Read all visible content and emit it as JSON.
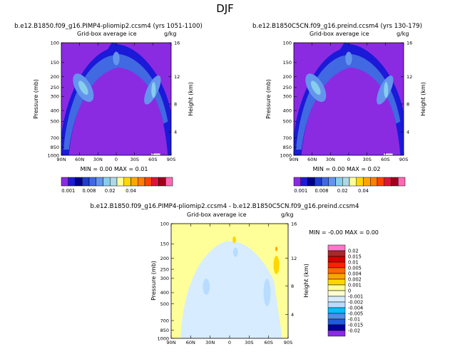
{
  "figure_title": "DJF",
  "chart_data": [
    {
      "type": "heatmap",
      "title": "b.e12.B1850.f09_g16.PIMP4-pliomip2.ccsm4 (yrs 1051-1100)",
      "subtitle": "Grid-box average ice",
      "units": "g/kg",
      "ylabel": "Pressure (mb)",
      "ylabel_right": "Height (km)",
      "xticks": [
        "90N",
        "60N",
        "30N",
        "0",
        "30S",
        "60S",
        "90S"
      ],
      "yticks": [
        "100",
        "150",
        "200",
        "250",
        "300",
        "400",
        "500",
        "700",
        "850",
        "1000"
      ],
      "height_ticks": [
        "16",
        "12",
        "8",
        "4"
      ],
      "min_label": "MIN =",
      "min_value": "0.00",
      "max_label": "MAX =",
      "max_value": "0.01"
    },
    {
      "type": "heatmap",
      "title": "b.e12.B1850C5CN.f09_g16.preind.ccsm4 (yrs 130-179)",
      "subtitle": "Grid-box average ice",
      "units": "g/kg",
      "ylabel": "Pressure (mb)",
      "ylabel_right": "Height (km)",
      "xticks": [
        "90N",
        "60N",
        "30N",
        "0",
        "30S",
        "60S",
        "90S"
      ],
      "yticks": [
        "100",
        "150",
        "200",
        "250",
        "300",
        "400",
        "500",
        "700",
        "850",
        "1000"
      ],
      "height_ticks": [
        "16",
        "12",
        "8",
        "4"
      ],
      "min_label": "MIN =",
      "min_value": "0.00",
      "max_label": "MAX =",
      "max_value": "0.02"
    },
    {
      "type": "heatmap",
      "title": "b.e12.B1850.f09_g16.PIMP4-pliomip2.ccsm4 - b.e12.B1850C5CN.f09_g16.preind.ccsm4",
      "subtitle": "Grid-box average ice",
      "units": "g/kg",
      "ylabel": "Pressure (mb)",
      "ylabel_right": "Height (km)",
      "xticks": [
        "90N",
        "60N",
        "30N",
        "0",
        "30S",
        "60S",
        "90S"
      ],
      "yticks": [
        "100",
        "150",
        "200",
        "250",
        "300",
        "400",
        "500",
        "700",
        "850",
        "1000"
      ],
      "height_ticks": [
        "16",
        "12",
        "8",
        "4"
      ],
      "min_label": "MIN =",
      "min_value": "-0.00",
      "max_label": "MAX =",
      "max_value": "0.00"
    }
  ],
  "colorbar_top": {
    "labels": [
      "0.001",
      "0.008",
      "0.02",
      "0.04"
    ],
    "colors": [
      "#8a2be2",
      "#1a1ad8",
      "#00008b",
      "#1e3fd0",
      "#4169e1",
      "#6495ed",
      "#87ceeb",
      "#add8e6",
      "#ffff99",
      "#ffd700",
      "#ffa500",
      "#ff7f00",
      "#ff4500",
      "#dc143c",
      "#a0001c",
      "#ff69b4"
    ]
  },
  "colorbar_diff": {
    "labels": [
      "0.02",
      "0.015",
      "0.01",
      "0.005",
      "0.004",
      "0.002",
      "0.001",
      "0",
      "-0.001",
      "-0.002",
      "-0.004",
      "-0.005",
      "-0.01",
      "-0.015",
      "-0.02"
    ],
    "colors": [
      "#ff77c8",
      "#a52a2a",
      "#d40000",
      "#ff2000",
      "#ff6a00",
      "#ffa500",
      "#ffd700",
      "#ffff99",
      "#fffcd0",
      "#d7ecff",
      "#b7dcff",
      "#00bfff",
      "#4f8fe8",
      "#1f5bd8",
      "#00009c",
      "#8a2be2"
    ]
  }
}
